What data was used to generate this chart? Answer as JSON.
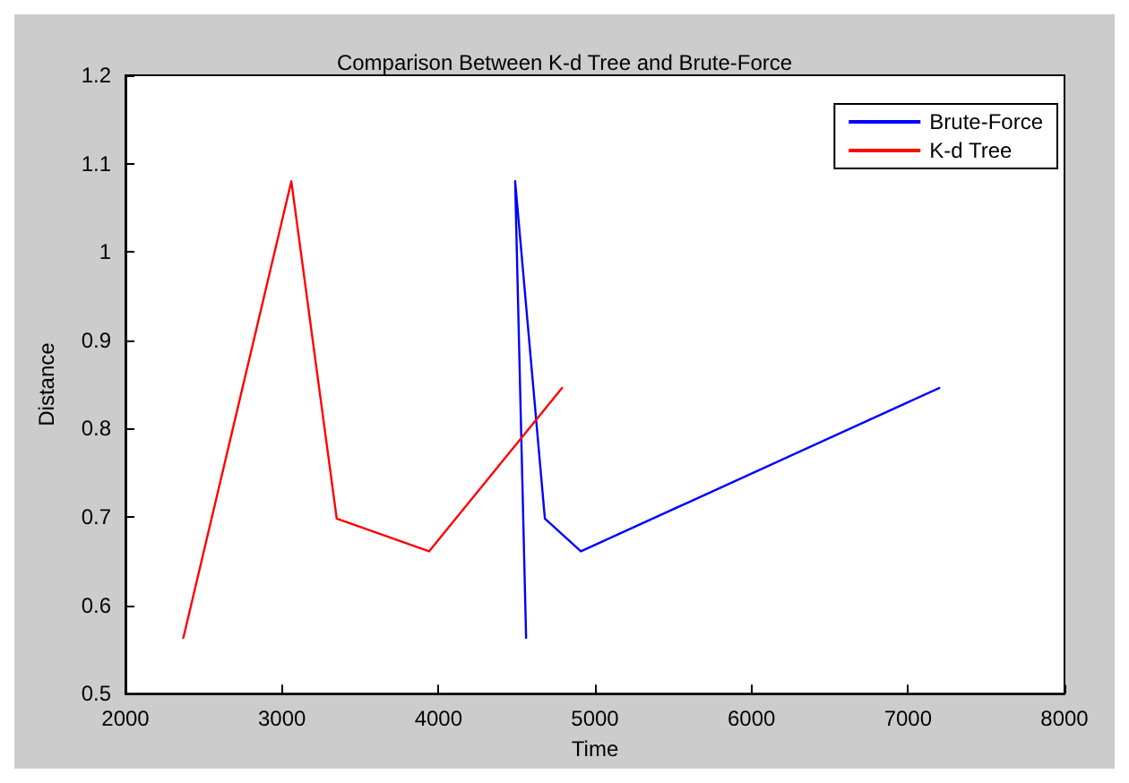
{
  "chart_data": {
    "type": "line",
    "title": "Comparison Between K-d Tree and Brute-Force",
    "xlabel": "Time",
    "ylabel": "Distance",
    "series": [
      {
        "name": "Brute-Force",
        "color": "#0000ff",
        "x": [
          4560,
          4490,
          4680,
          4910,
          7200
        ],
        "values": [
          0.563,
          1.08,
          0.698,
          0.661,
          0.846
        ]
      },
      {
        "name": "K-d Tree",
        "color": "#ff0000",
        "x": [
          2370,
          3060,
          3350,
          3940,
          4790
        ],
        "values": [
          0.563,
          1.08,
          0.698,
          0.661,
          0.846
        ]
      }
    ],
    "xlim": [
      2000,
      8000
    ],
    "xticks": [
      2000,
      3000,
      4000,
      5000,
      6000,
      7000,
      8000
    ],
    "ylim": [
      0.5,
      1.2
    ],
    "yticks": [
      0.5,
      0.6,
      0.7,
      0.8,
      0.9,
      1,
      1.1,
      1.2
    ],
    "grid": false,
    "legend": "top right",
    "marker": "none",
    "line_style": "solid"
  }
}
